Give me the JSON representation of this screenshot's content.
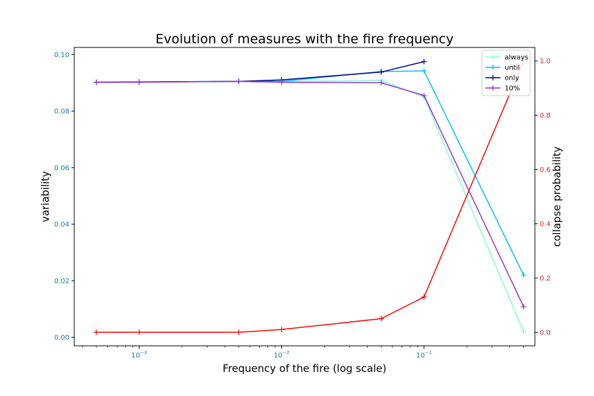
{
  "chart_data": {
    "type": "line",
    "title": "Evolution of measures with the fire frequency",
    "xlabel": "Frequency of the fire (log scale)",
    "ylabel_left": "variability",
    "ylabel_right": "collapse probability",
    "x_scale": "log",
    "xlim": [
      0.00035,
      0.6
    ],
    "ylim_left": [
      -0.003,
      0.1025
    ],
    "ylim_right": [
      -0.05,
      1.05
    ],
    "x_tick_labels": [
      {
        "value": 0.001,
        "base": "10",
        "exp": "−3"
      },
      {
        "value": 0.01,
        "base": "10",
        "exp": "−2"
      },
      {
        "value": 0.1,
        "base": "10",
        "exp": "−1"
      }
    ],
    "y_left_ticks": [
      "0.00",
      "0.02",
      "0.04",
      "0.06",
      "0.08",
      "0.10"
    ],
    "y_right_ticks": [
      "0.0",
      "0.2",
      "0.4",
      "0.6",
      "0.8",
      "1.0"
    ],
    "left_axis_color": "#1f77b4",
    "right_axis_color": "#d62728",
    "grid": false,
    "legend_position": "top-right",
    "series": [
      {
        "name": "always",
        "axis": "left",
        "color": "#7fffd4",
        "points": [
          [
            0.0005,
            0.0902
          ],
          [
            0.001,
            0.0903
          ],
          [
            0.005,
            0.0905
          ],
          [
            0.01,
            0.0905
          ],
          [
            0.05,
            0.0908
          ],
          [
            0.1,
            0.085
          ],
          [
            0.5,
            0.002
          ]
        ]
      },
      {
        "name": "until",
        "axis": "left",
        "color": "#00bfff",
        "points": [
          [
            0.0005,
            0.0902
          ],
          [
            0.001,
            0.0903
          ],
          [
            0.005,
            0.0905
          ],
          [
            0.01,
            0.0905
          ],
          [
            0.05,
            0.094
          ],
          [
            0.1,
            0.0942
          ],
          [
            0.5,
            0.022
          ]
        ]
      },
      {
        "name": "only",
        "axis": "left",
        "color": "#00007f",
        "points": [
          [
            0.0005,
            0.0902
          ],
          [
            0.001,
            0.0903
          ],
          [
            0.005,
            0.0905
          ],
          [
            0.01,
            0.091
          ],
          [
            0.05,
            0.0938
          ],
          [
            0.1,
            0.0975
          ]
        ]
      },
      {
        "name": "10%",
        "axis": "left",
        "color": "#9932cc",
        "points": [
          [
            0.0005,
            0.0902
          ],
          [
            0.001,
            0.0902
          ],
          [
            0.005,
            0.0905
          ],
          [
            0.01,
            0.0902
          ],
          [
            0.05,
            0.09
          ],
          [
            0.1,
            0.0855
          ],
          [
            0.5,
            0.0108
          ]
        ]
      },
      {
        "name": "",
        "axis": "right",
        "color": "#ff0000",
        "points": [
          [
            0.0005,
            0.0
          ],
          [
            0.001,
            0.0
          ],
          [
            0.005,
            0.0
          ],
          [
            0.01,
            0.01
          ],
          [
            0.05,
            0.05
          ],
          [
            0.1,
            0.13
          ],
          [
            0.5,
            1.0
          ]
        ]
      }
    ]
  }
}
